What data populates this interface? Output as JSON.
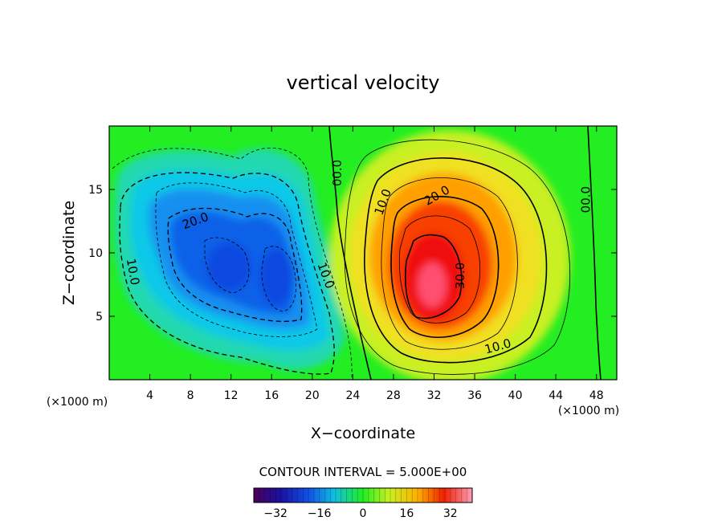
{
  "chart_data": {
    "type": "heatmap",
    "title": "vertical velocity",
    "xlabel": "X−coordinate",
    "ylabel": "Z−coordinate",
    "x_unit": "(×1000 m)",
    "y_unit": "(×1000 m)",
    "xlim": [
      0,
      50
    ],
    "ylim": [
      0,
      20
    ],
    "x_ticks": [
      4,
      8,
      12,
      16,
      20,
      24,
      28,
      32,
      36,
      40,
      44,
      48
    ],
    "x_tick_labels": [
      "4",
      "8",
      "12",
      "16",
      "20",
      "24",
      "28",
      "32",
      "36",
      "40",
      "44",
      "48"
    ],
    "y_ticks": [
      5,
      10,
      15
    ],
    "y_tick_labels": [
      "5",
      "10",
      "15"
    ],
    "field_extrema": [
      {
        "name": "updraft",
        "x": 32,
        "z": 8.5,
        "value": 38
      },
      {
        "name": "downdraft",
        "x": 14,
        "z": 9,
        "value": -28
      }
    ],
    "contour_labels": [
      {
        "text": "20.0",
        "x": 8.5,
        "z": 12.5,
        "rotate": -20
      },
      {
        "text": "10.0",
        "x": 2.3,
        "z": 8.5,
        "rotate": 80
      },
      {
        "text": "10.0",
        "x": 21.3,
        "z": 8.2,
        "rotate": 70
      },
      {
        "text": "00.0",
        "x": 22.5,
        "z": 16.3,
        "rotate": -90
      },
      {
        "text": "10.0",
        "x": 27,
        "z": 14,
        "rotate": -70
      },
      {
        "text": "20.0",
        "x": 32.3,
        "z": 14.5,
        "rotate": -30
      },
      {
        "text": "30.0",
        "x": 34.6,
        "z": 8.2,
        "rotate": -90
      },
      {
        "text": "10.0",
        "x": 38.3,
        "z": 2.6,
        "rotate": -15
      },
      {
        "text": "00.0",
        "x": 47,
        "z": 14.2,
        "rotate": -90
      }
    ],
    "contour_interval_label": "CONTOUR INTERVAL = 5.000E+00",
    "colorbar": {
      "min": -40,
      "max": 40,
      "tick_values": [
        -32,
        -16,
        0,
        16,
        32
      ],
      "tick_labels": [
        "−32",
        "−16",
        "0",
        "16",
        "32"
      ]
    },
    "colors": {
      "background_field": "#22ee22",
      "contour_line": "#000000"
    }
  }
}
